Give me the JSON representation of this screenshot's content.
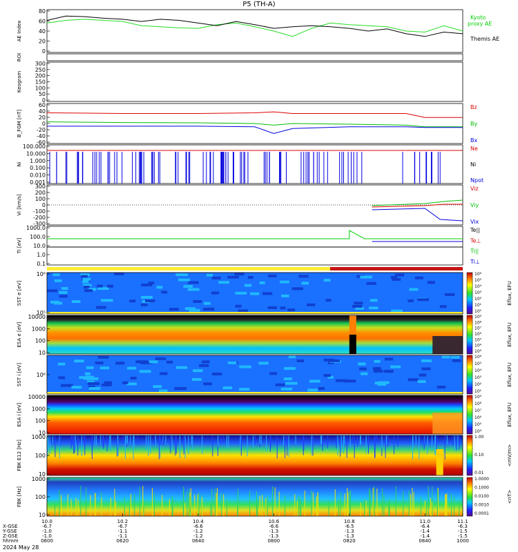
{
  "title": "P5 (TH-A)",
  "footer": {
    "date": "2024 May 28",
    "row_labels": [
      "X-GSE",
      "Y-GSE",
      "Z-GSE",
      "hhmm"
    ],
    "ticks": [
      {
        "ut": "10.0",
        "x": "-6.7",
        "y": "-1.0",
        "z": "-1.0",
        "hhmm": "0600"
      },
      {
        "ut": "10.2",
        "x": "-6.7",
        "y": "-1.1",
        "z": "-1.1",
        "hhmm": "0620"
      },
      {
        "ut": "10.4",
        "x": "-6.6",
        "y": "-1.2",
        "z": "-1.2",
        "hhmm": "0640"
      },
      {
        "ut": "10.6",
        "x": "-6.6",
        "y": "-1.3",
        "z": "-1.3",
        "hhmm": "0800"
      },
      {
        "ut": "10.8",
        "x": "-6.5",
        "y": "-1.3",
        "z": "-1.3",
        "hhmm": "0820"
      },
      {
        "ut": "11.0",
        "x": "-6.4",
        "y": "-1.4",
        "z": "-1.4",
        "hhmm": "0840"
      },
      {
        "ut": "11.1",
        "x": "-6.3",
        "y": "-1.5",
        "z": "-1.5",
        "hhmm": "1000"
      }
    ]
  },
  "chart_data": [
    {
      "id": "ae",
      "type": "line",
      "ylabel": "AE Index",
      "yticks": [
        "80",
        "60",
        "40",
        "20",
        "0"
      ],
      "ylim": [
        0,
        80
      ],
      "legend": [
        {
          "name": "Kyoto",
          "color": "#00cc00"
        },
        {
          "name": "proxy AE",
          "color": "#00cc00"
        },
        {
          "name": "Themis AE",
          "color": "#000000"
        }
      ],
      "series": [
        {
          "name": "Kyoto proxy AE",
          "color": "#22dd22",
          "x": [
            10.0,
            10.05,
            10.1,
            10.15,
            10.2,
            10.25,
            10.3,
            10.35,
            10.4,
            10.45,
            10.5,
            10.55,
            10.6,
            10.65,
            10.7,
            10.75,
            10.8,
            10.85,
            10.9,
            10.95,
            11.0,
            11.05,
            11.1
          ],
          "values": [
            55,
            60,
            62,
            60,
            58,
            50,
            48,
            46,
            45,
            52,
            55,
            48,
            40,
            30,
            45,
            55,
            52,
            50,
            48,
            40,
            38,
            50,
            40
          ]
        },
        {
          "name": "Themis AE",
          "color": "#000000",
          "x": [
            10.0,
            10.05,
            10.1,
            10.15,
            10.2,
            10.25,
            10.3,
            10.35,
            10.4,
            10.45,
            10.5,
            10.55,
            10.6,
            10.65,
            10.7,
            10.75,
            10.8,
            10.85,
            10.9,
            10.95,
            11.0,
            11.05,
            11.1
          ],
          "values": [
            60,
            68,
            67,
            64,
            62,
            58,
            62,
            60,
            55,
            50,
            58,
            52,
            45,
            48,
            50,
            48,
            45,
            40,
            44,
            35,
            30,
            38,
            35
          ]
        }
      ]
    },
    {
      "id": "roi",
      "type": "bar",
      "ylabel": "ROI",
      "values": []
    },
    {
      "id": "keogram",
      "type": "heatmap",
      "ylabel": "Keogram",
      "yticks": [
        "300",
        "250",
        "200",
        "150",
        "100",
        "50",
        "0"
      ],
      "ylim": [
        0,
        300
      ]
    },
    {
      "id": "bfgm",
      "type": "line",
      "ylabel": "B_FGM [nT]",
      "yticks": [
        "60",
        "40",
        "20",
        "0",
        "-20",
        "-40",
        "-60"
      ],
      "ylim": [
        -60,
        60
      ],
      "legend": [
        {
          "name": "Bz",
          "color": "#dd0000"
        },
        {
          "name": "By",
          "color": "#00bb00"
        },
        {
          "name": "Bx",
          "color": "#0000dd"
        }
      ],
      "series": [
        {
          "name": "Bz",
          "color": "#dd0000",
          "x": [
            10.0,
            10.2,
            10.4,
            10.55,
            10.6,
            10.65,
            10.8,
            10.95,
            11.0,
            11.1
          ],
          "values": [
            32,
            30,
            30,
            32,
            35,
            30,
            30,
            30,
            18,
            18
          ]
        },
        {
          "name": "By",
          "color": "#00bb00",
          "x": [
            10.0,
            10.2,
            10.4,
            10.55,
            10.6,
            10.65,
            10.8,
            10.95,
            11.0,
            11.1
          ],
          "values": [
            5,
            3,
            2,
            0,
            -5,
            0,
            -2,
            -5,
            -10,
            -10
          ]
        },
        {
          "name": "Bx",
          "color": "#0000dd",
          "x": [
            10.0,
            10.2,
            10.4,
            10.55,
            10.6,
            10.65,
            10.8,
            10.95,
            11.0,
            11.1
          ],
          "values": [
            -8,
            -8,
            -8,
            -10,
            -30,
            -15,
            -10,
            -10,
            -12,
            -12
          ]
        }
      ]
    },
    {
      "id": "ni",
      "type": "line",
      "ylabel": "Ni",
      "yticks": [
        "100.000",
        "10.000",
        "1.000",
        "0.100",
        "0.010",
        "0.001"
      ],
      "ylim": [
        0.001,
        100
      ],
      "yscale": "log",
      "legend": [
        {
          "name": "Ne",
          "color": "#dd0000"
        },
        {
          "name": "Ni",
          "color": "#000000"
        },
        {
          "name": "Npot",
          "color": "#0000dd"
        }
      ]
    },
    {
      "id": "vi",
      "type": "line",
      "ylabel": "Vi [km/s]",
      "yticks": [
        "300",
        "200",
        "100",
        "0",
        "-100",
        "-200",
        "-300"
      ],
      "ylim": [
        -300,
        300
      ],
      "legend": [
        {
          "name": "Viz",
          "color": "#dd0000"
        },
        {
          "name": "Viy",
          "color": "#00bb00"
        },
        {
          "name": "Vix",
          "color": "#0000dd"
        }
      ]
    },
    {
      "id": "ti",
      "type": "line",
      "ylabel": "Ti [eV]",
      "yticks": [
        "1000.0",
        "100.0",
        "10.0",
        "1.0",
        "0.1"
      ],
      "ylim": [
        0.1,
        1000
      ],
      "yscale": "log",
      "legend": [
        {
          "name": "Te||",
          "color": "#000000"
        },
        {
          "name": "Te⊥",
          "color": "#dd0000"
        },
        {
          "name": "Ti||",
          "color": "#00bb00"
        },
        {
          "name": "Ti⊥",
          "color": "#0000dd"
        }
      ]
    },
    {
      "id": "sst_e",
      "type": "heatmap",
      "ylabel": "SST e [eV]",
      "yticks": [
        "10⁶",
        "10⁵"
      ],
      "colorbar_label": "Eflux, EFU",
      "colorbar_ticks": [
        "10⁶",
        "10⁵",
        "10⁴",
        "10³",
        "10²",
        "10¹",
        "10⁰"
      ]
    },
    {
      "id": "esa_e",
      "type": "heatmap",
      "ylabel": "ESA e [eV]",
      "yticks": [
        "10000",
        "1000",
        "100",
        "10"
      ],
      "colorbar_label": "Eflux, EFU",
      "colorbar_ticks": [
        "10⁹",
        "10⁸",
        "10⁷",
        "10⁶",
        "10⁵",
        "10⁴",
        "10³"
      ]
    },
    {
      "id": "sst_i",
      "type": "heatmap",
      "ylabel": "SST i [eV]",
      "yticks": [
        "10⁶"
      ],
      "colorbar_label": "Eflux, EFU",
      "colorbar_ticks": [
        "10⁶",
        "10⁵",
        "10⁴",
        "10³",
        "10²",
        "10¹"
      ]
    },
    {
      "id": "esa_i",
      "type": "heatmap",
      "ylabel": "ESA i [eV]",
      "yticks": [
        "10000",
        "1000",
        "100",
        "10"
      ],
      "colorbar_label": "Eflux, EFU",
      "colorbar_ticks": [
        "10⁹",
        "10⁸",
        "10⁷",
        "10⁶",
        "10⁵",
        "10⁴"
      ]
    },
    {
      "id": "fbk_e",
      "type": "heatmap",
      "ylabel": "FBK E12 [Hz]",
      "yticks": [
        "1000",
        "100",
        "10"
      ],
      "colorbar_label": "<mV/m>",
      "colorbar_ticks": [
        "1.00",
        "0.10",
        "0.01"
      ]
    },
    {
      "id": "fbk_b",
      "type": "heatmap",
      "ylabel": "FBK [Hz]",
      "yticks": [
        "1000",
        "100",
        "10"
      ],
      "colorbar_label": "<nT>",
      "colorbar_ticks": [
        "1.0000",
        "0.1000",
        "0.0100",
        "0.0010",
        "0.0001"
      ]
    }
  ]
}
